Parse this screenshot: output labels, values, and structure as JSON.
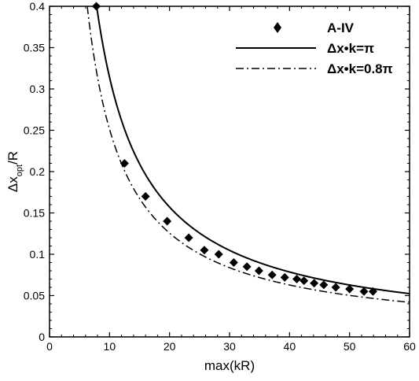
{
  "chart_data": {
    "type": "line",
    "xlabel": "max(kR)",
    "ylabel": {
      "main": "Δx",
      "sub": "opt",
      "suffix": "/R"
    },
    "xlim": [
      0,
      60
    ],
    "ylim": [
      0,
      0.4
    ],
    "xticks": [
      0,
      10,
      20,
      30,
      40,
      50,
      60
    ],
    "yticks": [
      0,
      0.05,
      0.1,
      0.15,
      0.2,
      0.25,
      0.3,
      0.35,
      0.4
    ],
    "ytick_labels": [
      "0",
      "0.05",
      "0.1",
      "0.15",
      "0.2",
      "0.25",
      "0.3",
      "0.35",
      "0.4"
    ],
    "xtick_labels": [
      "0",
      "10",
      "20",
      "30",
      "40",
      "50",
      "60"
    ],
    "grid": false,
    "legend_position": "top-right",
    "series": [
      {
        "name": "A-IV",
        "style": "markers",
        "marker": "diamond",
        "x": [
          7.8,
          12.5,
          16.0,
          19.6,
          23.2,
          25.8,
          28.2,
          30.7,
          32.9,
          34.9,
          37.1,
          39.2,
          41.2,
          42.4,
          44.1,
          45.7,
          47.7,
          50.0,
          52.4,
          53.9
        ],
        "y": [
          0.4,
          0.21,
          0.17,
          0.14,
          0.12,
          0.105,
          0.1,
          0.09,
          0.085,
          0.08,
          0.075,
          0.072,
          0.07,
          0.068,
          0.065,
          0.063,
          0.06,
          0.058,
          0.055,
          0.055
        ]
      },
      {
        "name": "Δx•k=π",
        "style": "solid",
        "formula_constant": 3.14159
      },
      {
        "name": "Δx•k=0.8π",
        "style": "dashdot",
        "formula_constant": 2.51327
      }
    ]
  }
}
